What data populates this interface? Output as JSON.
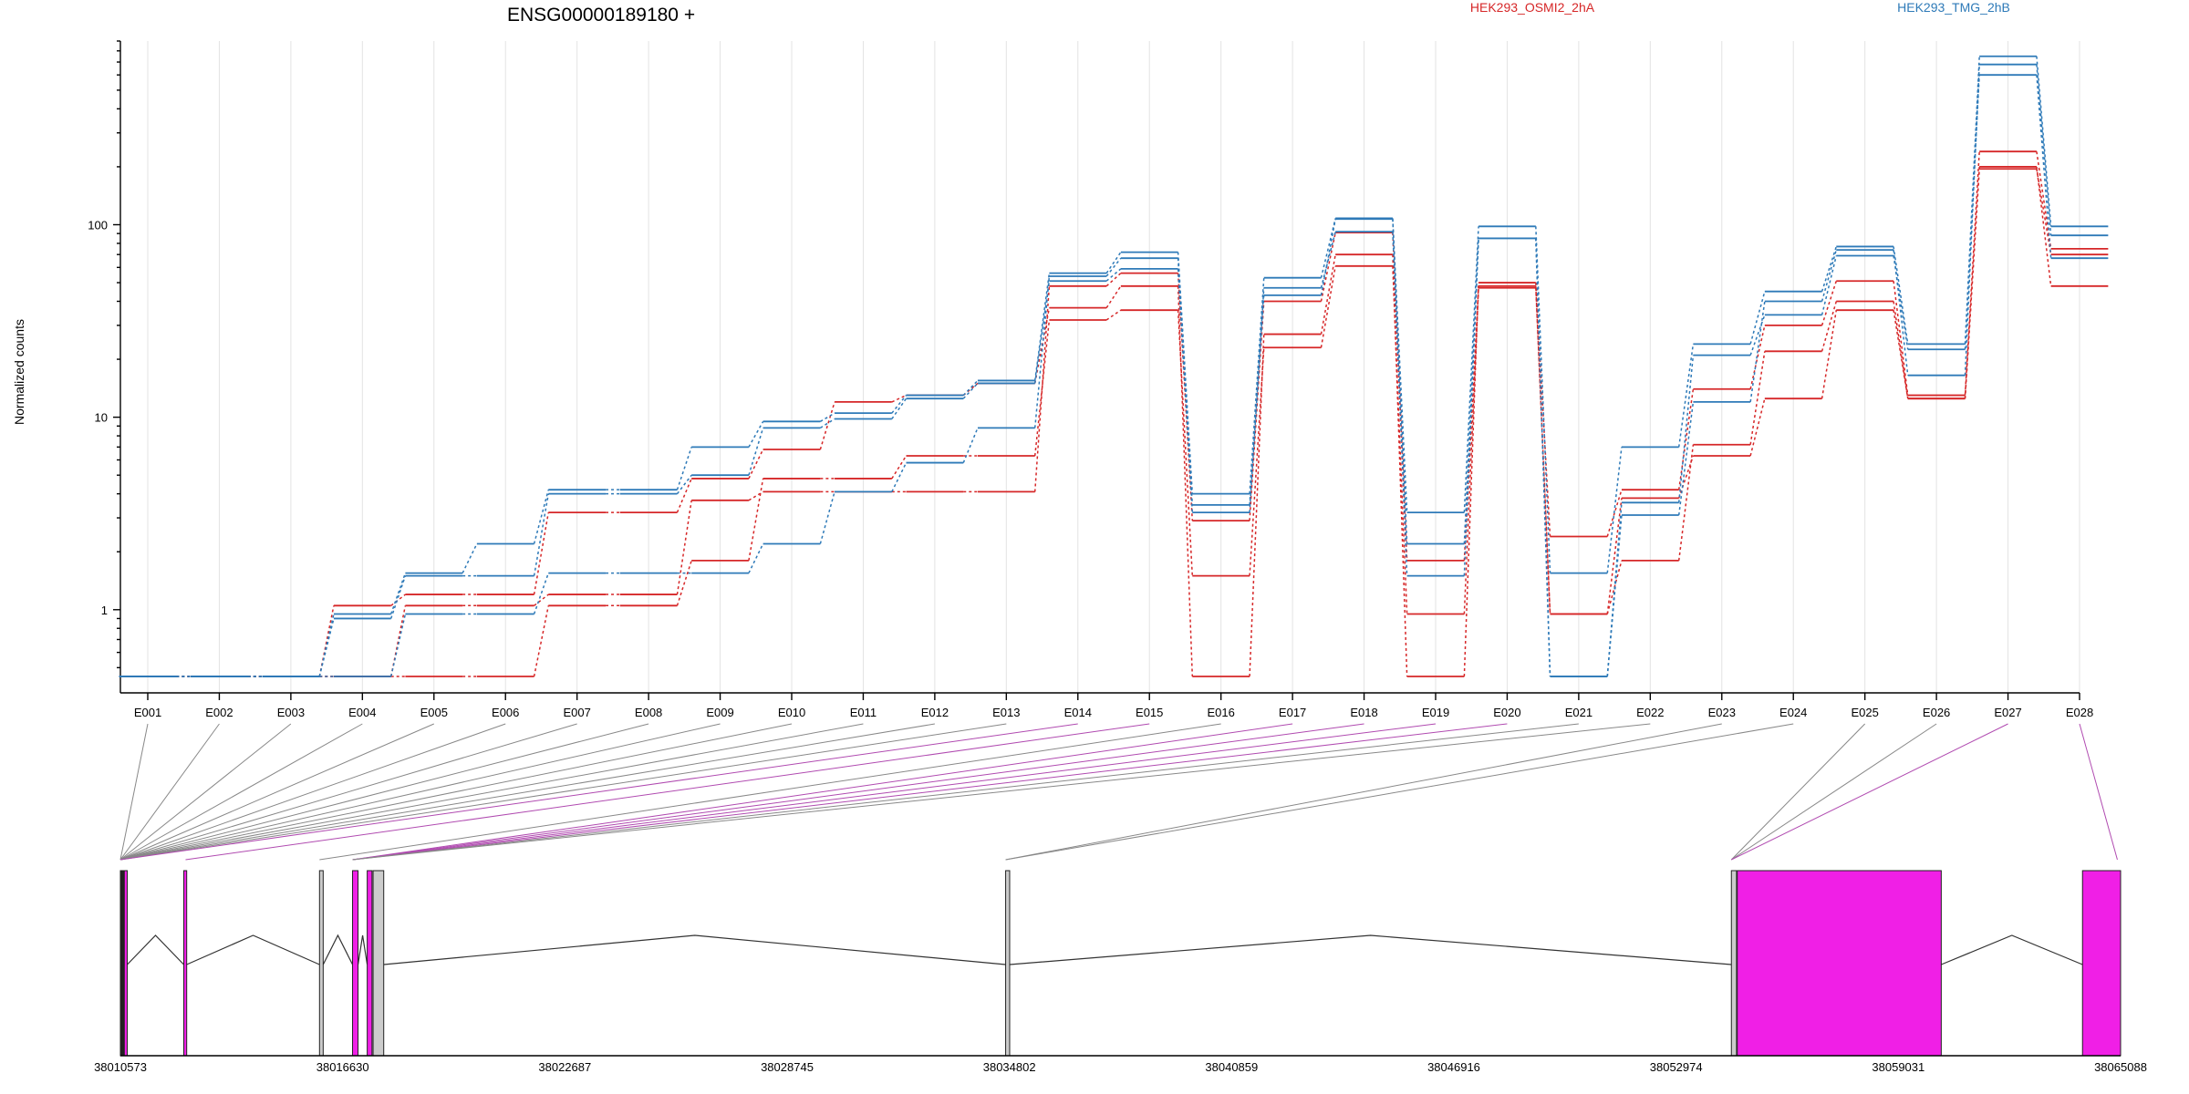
{
  "chart_data": {
    "type": "line",
    "title": "ENSG00000189180 +",
    "ylabel": "Normalized counts",
    "yscale": "log",
    "ylim": [
      0.45,
      900
    ],
    "yticks": [
      1,
      10,
      100
    ],
    "ytick_labels": [
      "1",
      "10",
      "100"
    ],
    "categories": [
      "E001",
      "E002",
      "E003",
      "E004",
      "E005",
      "E006",
      "E007",
      "E008",
      "E009",
      "E010",
      "E011",
      "E012",
      "E013",
      "E014",
      "E015",
      "E016",
      "E017",
      "E018",
      "E019",
      "E020",
      "E021",
      "E022",
      "E023",
      "E024",
      "E025",
      "E026",
      "E027",
      "E028"
    ],
    "conditions": [
      {
        "name": "HEK293_OSMI2_2hA",
        "color": "#d62728"
      },
      {
        "name": "HEK293_TMG_2hB",
        "color": "#2e7ab8"
      }
    ],
    "series": [
      {
        "condition": "HEK293_OSMI2_2hA",
        "values": [
          0.45,
          0.45,
          0.45,
          1.05,
          1.2,
          1.2,
          3.2,
          3.2,
          4.8,
          6.8,
          12,
          13,
          15,
          37,
          48,
          0.45,
          27,
          70,
          0.45,
          50,
          2.4,
          4.2,
          14,
          30,
          51,
          13,
          240,
          75
        ]
      },
      {
        "condition": "HEK293_OSMI2_2hA",
        "values": [
          0.45,
          0.45,
          0.45,
          0.45,
          0.45,
          0.45,
          1.05,
          1.05,
          1.8,
          4.8,
          4.8,
          6.3,
          6.3,
          32,
          36,
          1.5,
          23,
          61,
          0.95,
          47,
          0.95,
          1.8,
          7.2,
          22,
          40,
          12.5,
          200,
          48
        ]
      },
      {
        "condition": "HEK293_OSMI2_2hA",
        "values": [
          0.45,
          0.45,
          0.45,
          0.45,
          1.05,
          1.05,
          1.2,
          1.2,
          3.7,
          4.1,
          4.1,
          4.1,
          4.1,
          48,
          56,
          2.9,
          40,
          91,
          1.8,
          48,
          0.95,
          3.8,
          6.3,
          12.5,
          36,
          12.5,
          195,
          70
        ]
      },
      {
        "condition": "HEK293_TMG_2hB",
        "values": [
          0.45,
          0.45,
          0.45,
          0.95,
          1.55,
          2.2,
          4.2,
          4.2,
          7,
          9.5,
          10.5,
          13,
          15.5,
          56,
          72,
          4,
          53,
          108,
          3.2,
          98,
          1.55,
          7,
          24,
          45,
          77,
          24,
          750,
          98
        ]
      },
      {
        "condition": "HEK293_TMG_2hB",
        "values": [
          0.45,
          0.45,
          0.45,
          0.45,
          0.95,
          0.95,
          1.55,
          1.55,
          1.55,
          2.2,
          4.1,
          5.8,
          8.8,
          54,
          67,
          3.5,
          43,
          107,
          2.2,
          85,
          0.45,
          3.1,
          12,
          40,
          74,
          16.5,
          680,
          88
        ]
      },
      {
        "condition": "HEK293_TMG_2hB",
        "values": [
          0.45,
          0.45,
          0.45,
          0.9,
          1.5,
          1.5,
          4,
          4,
          5,
          8.8,
          9.8,
          12.5,
          15,
          51,
          59,
          3.2,
          47,
          92,
          1.5,
          85,
          0.45,
          3.6,
          21,
          34,
          69,
          22.5,
          600,
          67
        ]
      }
    ],
    "gene_model": {
      "coordinate_labels": [
        "38010573",
        "38016630",
        "38022687",
        "38028745",
        "38034802",
        "38040859",
        "38046916",
        "38052974",
        "38059031",
        "38065088"
      ],
      "coordinate_values": [
        38010573,
        38016630,
        38022687,
        38028745,
        38034802,
        38040859,
        38046916,
        38052974,
        38059031,
        38065088
      ],
      "exons": [
        {
          "start": 38010573,
          "end": 38010680,
          "color": "#222222"
        },
        {
          "start": 38010680,
          "end": 38010760,
          "color": "#f01fe6"
        },
        {
          "start": 38012300,
          "end": 38012380,
          "color": "#f01fe6"
        },
        {
          "start": 38016000,
          "end": 38016100,
          "color": "#cccccc"
        },
        {
          "start": 38016900,
          "end": 38017050,
          "color": "#f01fe6"
        },
        {
          "start": 38017300,
          "end": 38017430,
          "color": "#f01fe6"
        },
        {
          "start": 38017460,
          "end": 38017750,
          "color": "#cccccc"
        },
        {
          "start": 38034700,
          "end": 38034810,
          "color": "#cccccc"
        },
        {
          "start": 38054480,
          "end": 38054620,
          "color": "#cccccc"
        },
        {
          "start": 38054640,
          "end": 38060200,
          "color": "#f01fe6"
        },
        {
          "start": 38064050,
          "end": 38065088,
          "color": "#f01fe6"
        }
      ],
      "introns": [
        [
          38010760,
          38012300
        ],
        [
          38012380,
          38016000
        ],
        [
          38016100,
          38016900
        ],
        [
          38017050,
          38017300
        ],
        [
          38017750,
          38034700
        ],
        [
          38034810,
          38054480
        ],
        [
          38060200,
          38064050
        ]
      ],
      "exon_anchor_positions": [
        38010573,
        38010573,
        38010573,
        38010573,
        38010573,
        38010573,
        38010573,
        38010573,
        38010573,
        38010573,
        38010573,
        38010573,
        38010573,
        38010573,
        38012350,
        38016000,
        38016900,
        38016900,
        38016900,
        38016900,
        38016900,
        38016900,
        38034700,
        38034700,
        38054480,
        38054480,
        38054480,
        38065000
      ],
      "exon_link_colors": [
        "#888888",
        "#888888",
        "#888888",
        "#888888",
        "#888888",
        "#888888",
        "#888888",
        "#888888",
        "#888888",
        "#888888",
        "#888888",
        "#888888",
        "#888888",
        "#b04ab0",
        "#b04ab0",
        "#888888",
        "#b04ab0",
        "#b04ab0",
        "#b04ab0",
        "#b04ab0",
        "#888888",
        "#888888",
        "#888888",
        "#888888",
        "#888888",
        "#888888",
        "#b04ab0",
        "#b04ab0"
      ]
    }
  }
}
